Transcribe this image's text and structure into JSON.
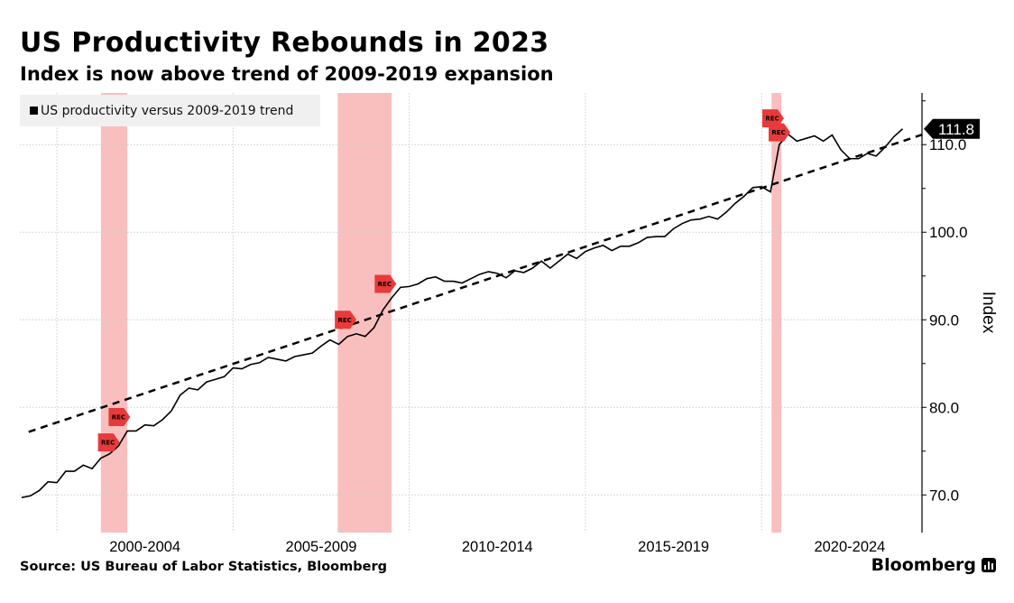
{
  "header": {
    "title": "US Productivity Rebounds in 2023",
    "subtitle": "Index is now above trend of 2009-2019 expansion"
  },
  "footer": {
    "source": "Source: US Bureau of Labor Statistics, Bloomberg",
    "brand": "Bloomberg"
  },
  "chart_data": {
    "type": "line",
    "title": "US Productivity Rebounds in 2023",
    "subtitle": "Index is now above trend of 2009-2019 expansion",
    "xlabel": "",
    "ylabel": "Index",
    "legend": {
      "position": "top-left",
      "entries": [
        "US productivity versus 2009-2019 trend"
      ]
    },
    "x_start": 1999.0,
    "x_step": 0.25,
    "xlim": [
      1998.95,
      2024.55
    ],
    "ylim": [
      65.7,
      115.9
    ],
    "x_ticks": [
      2000,
      2005,
      2010,
      2015,
      2020,
      2025
    ],
    "x_tick_labels": [
      {
        "label": "2000-2004",
        "center": 2002.5
      },
      {
        "label": "2005-2009",
        "center": 2007.5
      },
      {
        "label": "2010-2014",
        "center": 2012.5
      },
      {
        "label": "2015-2019",
        "center": 2017.5
      },
      {
        "label": "2020-2024",
        "center": 2022.5
      }
    ],
    "y_ticks": [
      70,
      80,
      90,
      100,
      110
    ],
    "y_tick_labels": [
      "70.0",
      "80.0",
      "90.0",
      "100.0",
      "110.0"
    ],
    "y_minor_ticks": [
      75,
      85,
      95,
      105,
      115
    ],
    "grid": true,
    "series": [
      {
        "name": "US productivity",
        "color": "#000000",
        "values": [
          69.7,
          69.9,
          70.5,
          71.5,
          71.4,
          72.7,
          72.7,
          73.4,
          73.0,
          74.2,
          74.7,
          75.6,
          77.3,
          77.3,
          78.0,
          77.9,
          78.6,
          79.6,
          81.4,
          82.2,
          82.0,
          82.9,
          83.2,
          83.5,
          84.5,
          84.4,
          84.9,
          85.1,
          85.7,
          85.5,
          85.3,
          85.8,
          86.0,
          86.2,
          87.0,
          87.7,
          87.2,
          88.1,
          88.4,
          88.1,
          89.1,
          91.1,
          92.5,
          93.7,
          93.8,
          94.1,
          94.7,
          94.9,
          94.4,
          94.4,
          94.2,
          94.7,
          95.2,
          95.5,
          95.3,
          94.8,
          95.6,
          95.4,
          95.9,
          96.7,
          95.9,
          96.7,
          97.5,
          97.0,
          97.8,
          98.2,
          98.5,
          97.9,
          98.4,
          98.4,
          98.8,
          99.4,
          99.5,
          99.5,
          100.4,
          101.0,
          101.4,
          101.5,
          101.8,
          101.5,
          102.3,
          103.3,
          104.1,
          105.1,
          105.2,
          104.6,
          110.0,
          111.2,
          110.4,
          110.7,
          111.0,
          110.4,
          111.1,
          109.4,
          108.4,
          108.4,
          109.0,
          108.7,
          109.7,
          110.9,
          111.8
        ]
      },
      {
        "name": "2009-2019 trend",
        "color": "#000000",
        "style": "dashed",
        "points": [
          [
            1999.2,
            77.2
          ],
          [
            2024.6,
            111.2
          ]
        ]
      }
    ],
    "last_value_label": "111.8",
    "recessions": [
      [
        2001.25,
        2002.0
      ],
      [
        2007.97,
        2009.5
      ],
      [
        2020.28,
        2020.56
      ]
    ],
    "recession_color": "#f8b4b4",
    "annotations": [
      {
        "label": "REC",
        "x": 2001.45,
        "y": 76.0
      },
      {
        "label": "REC",
        "x": 2001.75,
        "y": 78.9
      },
      {
        "label": "REC",
        "x": 2008.17,
        "y": 90.0
      },
      {
        "label": "REC",
        "x": 2009.3,
        "y": 94.1
      },
      {
        "label": "REC",
        "x": 2020.3,
        "y": 113.0
      },
      {
        "label": "REC",
        "x": 2020.48,
        "y": 111.4
      }
    ],
    "annotation_color": "#e83a3a"
  }
}
